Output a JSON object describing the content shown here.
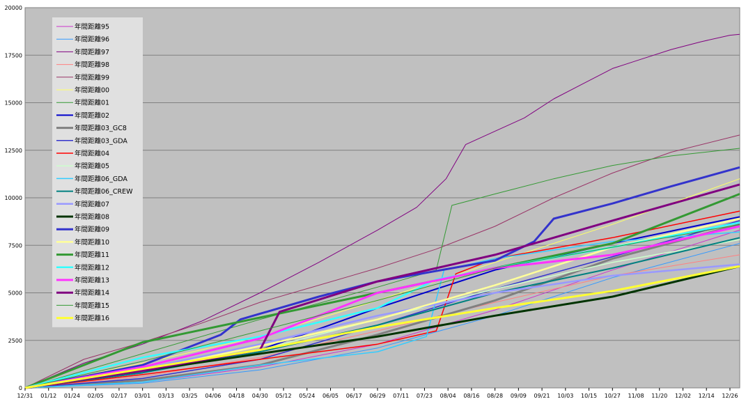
{
  "chart_data": {
    "type": "line",
    "title": "",
    "xlabel": "",
    "ylabel": "",
    "ylim": [
      0,
      20000
    ],
    "yticks": [
      0,
      2500,
      5000,
      7500,
      10000,
      12500,
      15000,
      17500,
      20000
    ],
    "xlim": [
      0,
      365
    ],
    "xticks": [
      {
        "label": "12/31",
        "day": 0
      },
      {
        "label": "01/12",
        "day": 12
      },
      {
        "label": "01/24",
        "day": 24
      },
      {
        "label": "02/05",
        "day": 36
      },
      {
        "label": "02/17",
        "day": 48
      },
      {
        "label": "03/01",
        "day": 60
      },
      {
        "label": "03/13",
        "day": 72
      },
      {
        "label": "03/25",
        "day": 84
      },
      {
        "label": "04/06",
        "day": 96
      },
      {
        "label": "04/18",
        "day": 108
      },
      {
        "label": "04/30",
        "day": 120
      },
      {
        "label": "05/12",
        "day": 132
      },
      {
        "label": "05/24",
        "day": 144
      },
      {
        "label": "06/05",
        "day": 156
      },
      {
        "label": "06/17",
        "day": 168
      },
      {
        "label": "06/29",
        "day": 180
      },
      {
        "label": "07/11",
        "day": 192
      },
      {
        "label": "07/23",
        "day": 204
      },
      {
        "label": "08/04",
        "day": 216
      },
      {
        "label": "08/16",
        "day": 228
      },
      {
        "label": "08/28",
        "day": 240
      },
      {
        "label": "09/09",
        "day": 252
      },
      {
        "label": "09/21",
        "day": 264
      },
      {
        "label": "10/03",
        "day": 276
      },
      {
        "label": "10/15",
        "day": 288
      },
      {
        "label": "10/27",
        "day": 300
      },
      {
        "label": "11/08",
        "day": 312
      },
      {
        "label": "11/20",
        "day": 324
      },
      {
        "label": "12/02",
        "day": 336
      },
      {
        "label": "12/14",
        "day": 348
      },
      {
        "label": "12/26",
        "day": 360
      }
    ],
    "grid": true,
    "legend": "top-left",
    "background": "#c0c0c0",
    "series": [
      {
        "name": "年間距離95",
        "color": "#cc33cc",
        "width": 1,
        "x": [
          0,
          60,
          120,
          180,
          240,
          300,
          365
        ],
        "y": [
          0,
          300,
          1100,
          2300,
          4100,
          6200,
          8300
        ]
      },
      {
        "name": "年間距離96",
        "color": "#3399ff",
        "width": 1,
        "x": [
          0,
          60,
          120,
          180,
          240,
          300,
          365
        ],
        "y": [
          0,
          250,
          950,
          2100,
          3800,
          5800,
          7600
        ]
      },
      {
        "name": "年間距離97",
        "color": "#800080",
        "width": 1,
        "x": [
          0,
          30,
          60,
          90,
          120,
          150,
          180,
          200,
          215,
          225,
          240,
          255,
          270,
          285,
          300,
          315,
          330,
          345,
          360,
          365
        ],
        "y": [
          0,
          1300,
          2300,
          3500,
          5000,
          6600,
          8300,
          9500,
          11000,
          12800,
          13500,
          14200,
          15200,
          16000,
          16800,
          17300,
          17800,
          18200,
          18550,
          18600
        ]
      },
      {
        "name": "年間距離98",
        "color": "#ff8080",
        "width": 1,
        "x": [
          0,
          60,
          120,
          180,
          240,
          300,
          365
        ],
        "y": [
          0,
          600,
          1600,
          3000,
          4500,
          5900,
          7000
        ]
      },
      {
        "name": "年間距離99",
        "color": "#993366",
        "width": 1,
        "x": [
          0,
          30,
          60,
          90,
          120,
          150,
          180,
          210,
          240,
          270,
          300,
          330,
          365
        ],
        "y": [
          0,
          1500,
          2400,
          3400,
          4500,
          5400,
          6300,
          7300,
          8500,
          10000,
          11300,
          12400,
          13300
        ]
      },
      {
        "name": "年間距離00",
        "color": "#ffff66",
        "width": 1,
        "x": [
          0,
          60,
          120,
          180,
          240,
          300,
          365
        ],
        "y": [
          0,
          1300,
          2700,
          4600,
          6600,
          8600,
          11000
        ]
      },
      {
        "name": "年間距離01",
        "color": "#339933",
        "width": 1,
        "x": [
          0,
          60,
          120,
          180,
          210,
          218,
          240,
          270,
          300,
          330,
          365
        ],
        "y": [
          0,
          1800,
          3600,
          5300,
          6200,
          9600,
          10200,
          11000,
          11700,
          12200,
          12600
        ]
      },
      {
        "name": "年間距離02",
        "color": "#0000cc",
        "width": 2,
        "x": [
          0,
          60,
          120,
          180,
          240,
          300,
          365
        ],
        "y": [
          0,
          800,
          2000,
          4200,
          6200,
          7600,
          9000
        ]
      },
      {
        "name": "年間距離03_GC8",
        "color": "#808080",
        "width": 3,
        "x": [
          0,
          60,
          120,
          180,
          240,
          300,
          365
        ],
        "y": [
          0,
          400,
          1200,
          2800,
          4600,
          6800,
          8600
        ]
      },
      {
        "name": "年間距離03_GDA",
        "color": "#3333cc",
        "width": 1.5,
        "x": [
          0,
          60,
          120,
          180,
          240,
          300,
          365
        ],
        "y": [
          0,
          500,
          1500,
          3300,
          5200,
          6900,
          8800
        ]
      },
      {
        "name": "年間距離04",
        "color": "#ff0000",
        "width": 1.5,
        "x": [
          0,
          60,
          120,
          180,
          210,
          220,
          240,
          300,
          365
        ],
        "y": [
          0,
          700,
          1500,
          2300,
          3000,
          6000,
          6800,
          7900,
          9300
        ]
      },
      {
        "name": "年間距離05",
        "color": "#ccffcc",
        "width": 1.5,
        "x": [
          0,
          60,
          120,
          180,
          240,
          300,
          365
        ],
        "y": [
          0,
          900,
          2000,
          3600,
          5200,
          6600,
          7800
        ]
      },
      {
        "name": "年間距離06_GDA",
        "color": "#33ccff",
        "width": 1.5,
        "x": [
          0,
          60,
          120,
          180,
          205,
          214,
          240,
          300,
          365
        ],
        "y": [
          0,
          300,
          1200,
          1900,
          2700,
          6200,
          6800,
          7700,
          8200
        ]
      },
      {
        "name": "年間距離06_CREW",
        "color": "#008080",
        "width": 2,
        "x": [
          0,
          60,
          120,
          180,
          240,
          300,
          365
        ],
        "y": [
          0,
          800,
          1900,
          3300,
          5000,
          6300,
          7900
        ]
      },
      {
        "name": "年間距離07",
        "color": "#9999ff",
        "width": 2.5,
        "x": [
          0,
          60,
          120,
          180,
          240,
          300,
          365
        ],
        "y": [
          0,
          1000,
          2300,
          3800,
          5000,
          5900,
          6500
        ]
      },
      {
        "name": "年間距離08",
        "color": "#003300",
        "width": 3,
        "x": [
          0,
          60,
          120,
          180,
          240,
          300,
          365
        ],
        "y": [
          0,
          900,
          1800,
          2700,
          3800,
          4800,
          6400
        ]
      },
      {
        "name": "年間距離09",
        "color": "#3333cc",
        "width": 3,
        "x": [
          0,
          60,
          100,
          110,
          150,
          180,
          240,
          260,
          270,
          300,
          330,
          365
        ],
        "y": [
          0,
          1200,
          2800,
          3600,
          4800,
          5600,
          6700,
          7700,
          8900,
          9700,
          10600,
          11600
        ]
      },
      {
        "name": "年間距離10",
        "color": "#ffff99",
        "width": 2.5,
        "x": [
          0,
          60,
          120,
          180,
          240,
          300,
          365
        ],
        "y": [
          0,
          900,
          2200,
          3600,
          5400,
          7400,
          8900
        ]
      },
      {
        "name": "年間距離11",
        "color": "#339933",
        "width": 3,
        "x": [
          0,
          60,
          120,
          180,
          240,
          300,
          365
        ],
        "y": [
          0,
          2400,
          3700,
          5000,
          6300,
          7600,
          10200
        ]
      },
      {
        "name": "年間距離12",
        "color": "#33ffff",
        "width": 2.5,
        "x": [
          0,
          60,
          120,
          180,
          210,
          240,
          300,
          365
        ],
        "y": [
          0,
          1600,
          2700,
          4200,
          5700,
          6300,
          7400,
          8700
        ]
      },
      {
        "name": "年間距離13",
        "color": "#ff33ff",
        "width": 3,
        "x": [
          0,
          60,
          120,
          180,
          240,
          300,
          365
        ],
        "y": [
          0,
          1100,
          2600,
          5000,
          6300,
          7000,
          8500
        ]
      },
      {
        "name": "年間距離14",
        "color": "#800080",
        "width": 3,
        "x": [
          0,
          60,
          120,
          130,
          180,
          240,
          300,
          365
        ],
        "y": [
          0,
          900,
          2000,
          4000,
          5600,
          7000,
          8800,
          10700
        ]
      },
      {
        "name": "年間距離15",
        "color": "#339933",
        "width": 1,
        "x": [
          0,
          60,
          120,
          180,
          240,
          300,
          365
        ],
        "y": [
          0,
          1400,
          3000,
          4600,
          6300,
          7400,
          8600
        ]
      },
      {
        "name": "年間距離16",
        "color": "#ffff33",
        "width": 3,
        "x": [
          0,
          60,
          120,
          180,
          240,
          300,
          365
        ],
        "y": [
          0,
          1000,
          2000,
          3200,
          4200,
          5100,
          6400
        ]
      }
    ]
  }
}
